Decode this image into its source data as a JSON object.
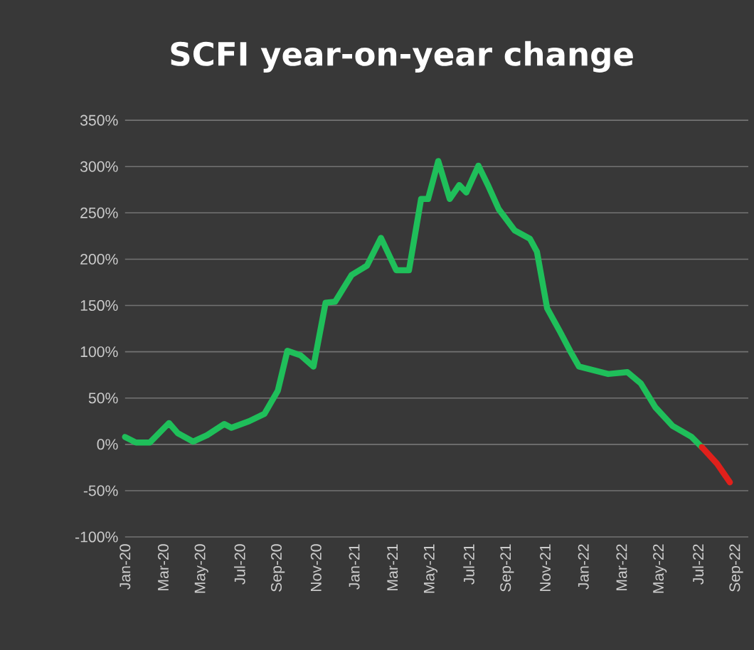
{
  "chart_data": {
    "type": "line",
    "title": "SCFI year-on-year change",
    "series": [
      {
        "color": "#1fbf5a",
        "x": [
          "2020-01-01",
          "2020-01-18",
          "2020-02-10",
          "2020-03-10",
          "2020-03-24",
          "2020-04-18",
          "2020-05-10",
          "2020-06-07",
          "2020-06-18",
          "2020-07-16",
          "2020-08-10",
          "2020-09-01",
          "2020-09-16",
          "2020-10-07",
          "2020-10-27",
          "2020-11-16",
          "2020-12-01",
          "2020-12-27",
          "2021-01-21",
          "2021-02-13",
          "2021-03-07",
          "2021-03-27",
          "2021-04-16",
          "2021-04-27",
          "2021-05-13",
          "2021-06-01",
          "2021-06-16",
          "2021-06-27",
          "2021-07-16",
          "2021-08-01",
          "2021-08-18",
          "2021-09-13",
          "2021-10-07",
          "2021-10-18",
          "2021-11-04",
          "2021-11-24",
          "2021-12-10",
          "2021-12-24",
          "2022-02-10",
          "2022-03-10",
          "2022-04-01",
          "2022-04-24",
          "2022-05-21",
          "2022-06-21",
          "2022-07-07"
        ],
        "values": [
          8,
          2,
          2,
          23,
          12,
          3,
          10,
          22,
          18,
          25,
          33,
          58,
          101,
          96,
          84,
          153,
          154,
          183,
          193,
          223,
          188,
          188,
          265,
          265,
          306,
          265,
          280,
          272,
          301,
          280,
          254,
          231,
          222,
          208,
          147,
          122,
          101,
          84,
          76,
          78,
          66,
          40,
          20,
          8,
          -3
        ]
      },
      {
        "color": "#e0201b",
        "x": [
          "2022-07-07",
          "2022-08-01",
          "2022-08-21"
        ],
        "values": [
          -3,
          -21,
          -41
        ]
      }
    ],
    "xlim": [
      "2020-01-01",
      "2022-09-20"
    ],
    "xticks": [
      {
        "value": "2020-01-01",
        "label": "Jan-20"
      },
      {
        "value": "2020-03-01",
        "label": "Mar-20"
      },
      {
        "value": "2020-05-01",
        "label": "May-20"
      },
      {
        "value": "2020-07-01",
        "label": "Jul-20"
      },
      {
        "value": "2020-09-01",
        "label": "Sep-20"
      },
      {
        "value": "2020-11-01",
        "label": "Nov-20"
      },
      {
        "value": "2021-01-01",
        "label": "Jan-21"
      },
      {
        "value": "2021-03-01",
        "label": "Mar-21"
      },
      {
        "value": "2021-05-01",
        "label": "May-21"
      },
      {
        "value": "2021-07-01",
        "label": "Jul-21"
      },
      {
        "value": "2021-09-01",
        "label": "Sep-21"
      },
      {
        "value": "2021-11-01",
        "label": "Nov-21"
      },
      {
        "value": "2022-01-01",
        "label": "Jan-22"
      },
      {
        "value": "2022-03-01",
        "label": "Mar-22"
      },
      {
        "value": "2022-05-01",
        "label": "May-22"
      },
      {
        "value": "2022-07-01",
        "label": "Jul-22"
      },
      {
        "value": "2022-09-01",
        "label": "Sep-22"
      }
    ],
    "ylim": [
      -100,
      350
    ],
    "yticks": [
      {
        "value": -100,
        "label": "-100%"
      },
      {
        "value": -50,
        "label": "-50%"
      },
      {
        "value": 0,
        "label": "0%"
      },
      {
        "value": 50,
        "label": "50%"
      },
      {
        "value": 100,
        "label": "100%"
      },
      {
        "value": 150,
        "label": "150%"
      },
      {
        "value": 200,
        "label": "200%"
      },
      {
        "value": 250,
        "label": "250%"
      },
      {
        "value": 300,
        "label": "300%"
      },
      {
        "value": 350,
        "label": "350%"
      }
    ],
    "grid": "y",
    "marker": "none",
    "line_style": "solid"
  }
}
